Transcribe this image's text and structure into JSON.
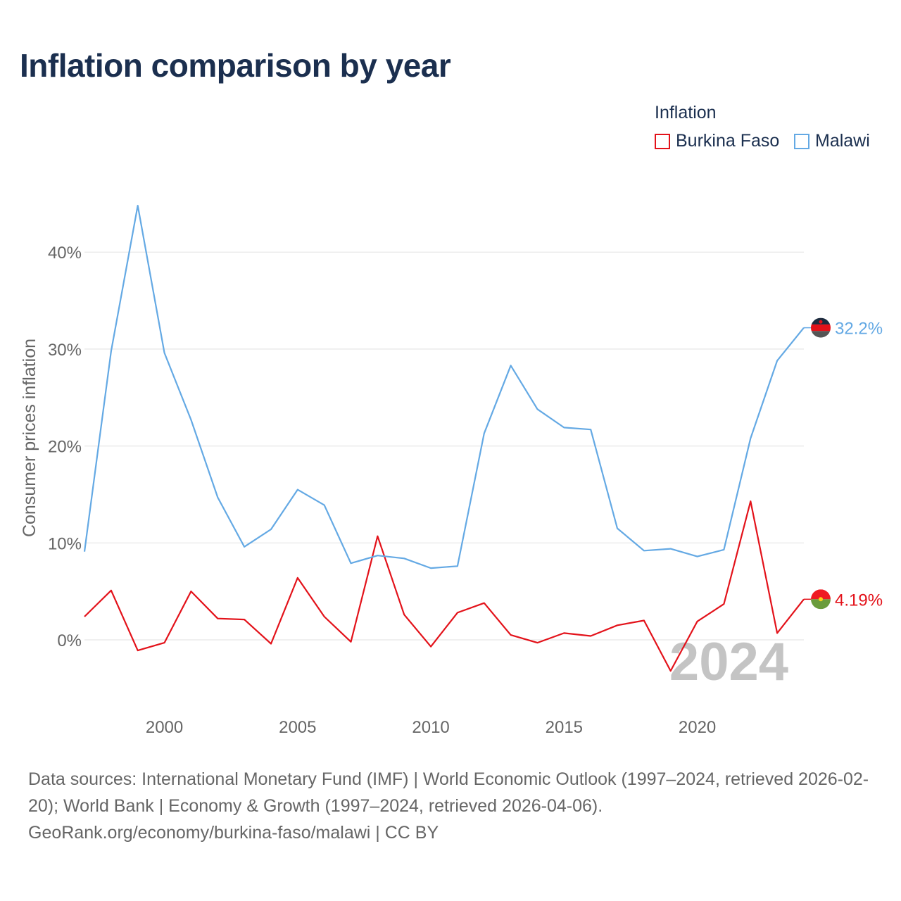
{
  "title": "Inflation comparison by year",
  "legend": {
    "title": "Inflation",
    "items": [
      {
        "label": "Burkina Faso",
        "color": "#e3121a"
      },
      {
        "label": "Malawi",
        "color": "#64a9e4"
      }
    ]
  },
  "watermark_year": "2024",
  "footer": {
    "sources": "Data sources: International Monetary Fund (IMF) | World Economic Outlook (1997–2024, retrieved 2026-02-20); World Bank | Economy & Growth (1997–2024, retrieved 2026-04-06).",
    "credit": "GeoRank.org/economy/burkina-faso/malawi | CC BY"
  },
  "chart_data": {
    "type": "line",
    "title": "Inflation comparison by year",
    "xlabel": "",
    "ylabel": "Consumer prices inflation",
    "xlim": [
      1997,
      2024
    ],
    "ylim": [
      -7,
      50
    ],
    "x_ticks": [
      2000,
      2005,
      2010,
      2015,
      2020
    ],
    "y_ticks": [
      0,
      10,
      20,
      30,
      40
    ],
    "y_tick_labels": [
      "0%",
      "10%",
      "20%",
      "30%",
      "40%"
    ],
    "grid": true,
    "x": [
      1997,
      1998,
      1999,
      2000,
      2001,
      2002,
      2003,
      2004,
      2005,
      2006,
      2007,
      2008,
      2009,
      2010,
      2011,
      2012,
      2013,
      2014,
      2015,
      2016,
      2017,
      2018,
      2019,
      2020,
      2021,
      2022,
      2023,
      2024
    ],
    "series": [
      {
        "name": "Burkina Faso",
        "color": "#e3121a",
        "end_label": "4.19%",
        "values": [
          2.4,
          5.1,
          -1.1,
          -0.3,
          5.0,
          2.2,
          2.1,
          -0.4,
          6.4,
          2.4,
          -0.2,
          10.7,
          2.6,
          -0.7,
          2.8,
          3.8,
          0.5,
          -0.3,
          0.7,
          0.4,
          1.5,
          2.0,
          -3.2,
          1.9,
          3.7,
          14.3,
          0.7,
          4.19
        ]
      },
      {
        "name": "Malawi",
        "color": "#64a9e4",
        "end_label": "32.2%",
        "values": [
          9.1,
          29.8,
          44.8,
          29.6,
          22.7,
          14.7,
          9.6,
          11.4,
          15.5,
          13.9,
          7.9,
          8.7,
          8.4,
          7.4,
          7.6,
          21.3,
          28.3,
          23.8,
          21.9,
          21.7,
          11.5,
          9.2,
          9.4,
          8.6,
          9.3,
          20.8,
          28.8,
          32.2
        ]
      }
    ]
  }
}
